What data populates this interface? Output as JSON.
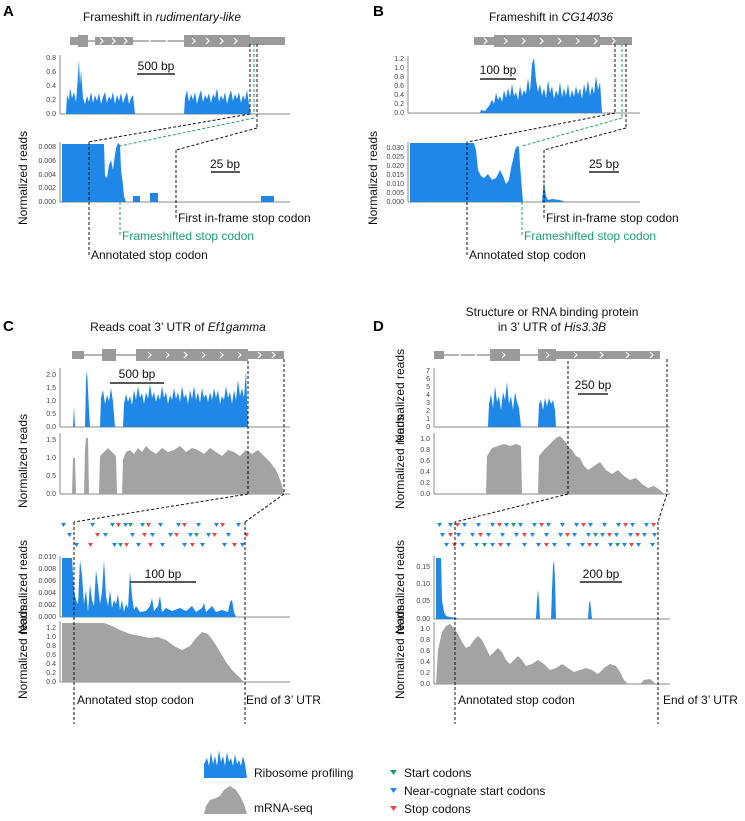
{
  "colors": {
    "ribo": "#1f87e8",
    "mrna": "#a3a3a3",
    "start": "#1a9e74",
    "near": "#1f87e8",
    "stop": "#e8474c",
    "gene": "#9a9a9a"
  },
  "ylabel": "Normalized reads",
  "panels": {
    "A": {
      "letter": "A",
      "title_prefix": "Frameshift in ",
      "title_italic": "rudimentary-like",
      "top_ticks": [
        "0.0",
        "0.2",
        "0.4",
        "0.6",
        "0.8"
      ],
      "top_scale": "500 bp",
      "zoom_ticks": [
        "0.000",
        "0.002",
        "0.004",
        "0.006",
        "0.008"
      ],
      "zoom_scale": "25 bp",
      "first_stop": "First in-frame stop codon",
      "frameshift_stop": "Frameshifted stop codon",
      "annotated_stop": "Annotated stop codon"
    },
    "B": {
      "letter": "B",
      "title_prefix": "Frameshift in ",
      "title_italic": "CG14036",
      "top_ticks": [
        "0.0",
        "0.2",
        "0.4",
        "0.6",
        "0.8",
        "1.0",
        "1.2"
      ],
      "top_scale": "100 bp",
      "zoom_ticks": [
        "0.000",
        "0.005",
        "0.010",
        "0.015",
        "0.020",
        "0.025",
        "0.030"
      ],
      "zoom_scale": "25 bp",
      "first_stop": "First in-frame stop codon",
      "frameshift_stop": "Frameshifted stop codon",
      "annotated_stop": "Annotated stop codon"
    },
    "C": {
      "letter": "C",
      "title_prefix": "Reads coat 3’ UTR of ",
      "title_italic": "Ef1gamma",
      "ribo_ticks": [
        "0.0",
        "0.5",
        "1.0",
        "1.5",
        "2.0"
      ],
      "top_scale": "500 bp",
      "mrna_ticks": [
        "0.0",
        "0.5",
        "1.0",
        "1.5"
      ],
      "zoom_ribo_ticks": [
        "0.000",
        "0.002",
        "0.004",
        "0.006",
        "0.008",
        "0.010"
      ],
      "zoom_scale": "100 bp",
      "zoom_mrna_ticks": [
        "0.0",
        "0.2",
        "0.4",
        "0.6",
        "0.8",
        "1.0",
        "1.2"
      ],
      "annotated_stop": "Annotated stop codon",
      "end_utr": "End of 3’ UTR"
    },
    "D": {
      "letter": "D",
      "title_line1": "Structure or RNA binding protein",
      "title_prefix": "in 3’ UTR of ",
      "title_italic": "His3.3B",
      "ribo_ticks": [
        "0",
        "1",
        "2",
        "3",
        "4",
        "5",
        "6",
        "7"
      ],
      "top_scale": "250 bp",
      "mrna_ticks": [
        "0.0",
        "0.2",
        "0.4",
        "0.6",
        "0.8",
        "1.0"
      ],
      "zoom_ribo_ticks": [
        "0.00",
        "0.05",
        "0.10",
        "0.15"
      ],
      "zoom_scale": "200 bp",
      "zoom_mrna_ticks": [
        "0.0",
        "0.2",
        "0.4",
        "0.6",
        "0.8",
        "1.0"
      ],
      "annotated_stop": "Annotated stop codon",
      "end_utr": "End of 3’ UTR"
    }
  },
  "legend": {
    "ribo": "Ribosome profiling",
    "mrna": "mRNA-seq",
    "start": "Start codons",
    "near": "Near-cognate start codons",
    "stop": "Stop codons"
  }
}
